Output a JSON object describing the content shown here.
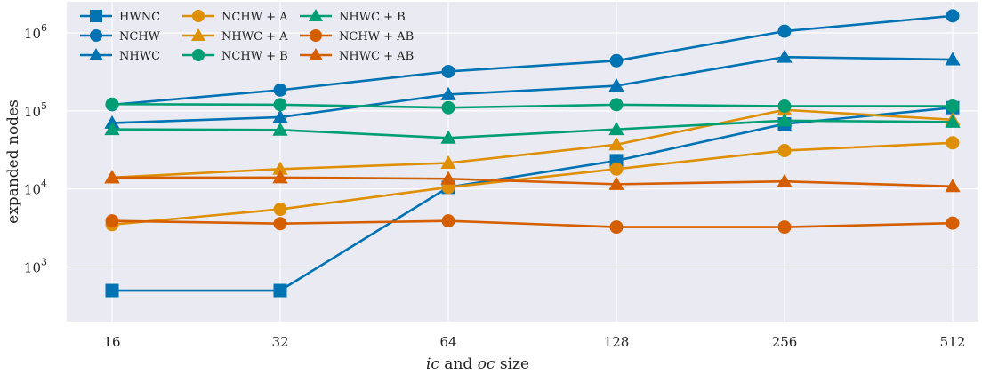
{
  "chart_data": {
    "type": "line",
    "x_ticks": [
      "16",
      "32",
      "64",
      "128",
      "256",
      "512"
    ],
    "x": [
      16,
      32,
      64,
      128,
      256,
      512
    ],
    "xlabel": {
      "italic1": "ic",
      "mid": " and ",
      "italic2": "oc",
      "end": " size"
    },
    "ylabel": "expanded nodes",
    "y_scale": "log",
    "ylim": [
      200,
      2500000
    ],
    "y_ticks": [
      {
        "value": 1000,
        "base": "10",
        "exp": "3"
      },
      {
        "value": 10000,
        "base": "10",
        "exp": "4"
      },
      {
        "value": 100000,
        "base": "10",
        "exp": "5"
      },
      {
        "value": 1000000,
        "base": "10",
        "exp": "6"
      }
    ],
    "grid": true,
    "legend_position": "top-left",
    "series": [
      {
        "name": "HWNC",
        "color": "#0173b2",
        "marker": "square",
        "values": [
          500,
          500,
          10500,
          23000,
          68000,
          110000
        ]
      },
      {
        "name": "NCHW",
        "color": "#0173b2",
        "marker": "circle",
        "values": [
          120000,
          185000,
          320000,
          440000,
          1050000,
          1650000
        ]
      },
      {
        "name": "NHWC",
        "color": "#0173b2",
        "marker": "triangle",
        "values": [
          70000,
          83000,
          162000,
          210000,
          490000,
          455000
        ]
      },
      {
        "name": "NCHW + A",
        "color": "#de8f05",
        "marker": "circle",
        "values": [
          3500,
          5500,
          10500,
          18000,
          31000,
          39000
        ]
      },
      {
        "name": "NHWC + A",
        "color": "#de8f05",
        "marker": "triangle",
        "values": [
          14000,
          18000,
          21500,
          37000,
          103000,
          77000
        ]
      },
      {
        "name": "NCHW + B",
        "color": "#029e73",
        "marker": "circle",
        "values": [
          122000,
          120000,
          110000,
          120000,
          115000,
          115000
        ]
      },
      {
        "name": "NHWC + B",
        "color": "#029e73",
        "marker": "triangle",
        "values": [
          58000,
          57000,
          45000,
          58000,
          75000,
          72000
        ]
      },
      {
        "name": "NCHW + AB",
        "color": "#d55e00",
        "marker": "circle",
        "values": [
          3900,
          3600,
          3900,
          3250,
          3250,
          3650
        ]
      },
      {
        "name": "NHWC + AB",
        "color": "#d55e00",
        "marker": "triangle",
        "values": [
          14000,
          14000,
          13500,
          11500,
          12500,
          10800
        ]
      }
    ]
  }
}
